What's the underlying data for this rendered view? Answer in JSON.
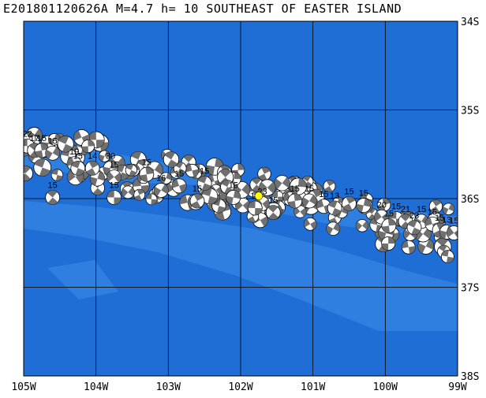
{
  "title": "E201801120626A M=4.7 h= 10 SOUTHEAST OF EASTER ISLAND",
  "colors": {
    "ocean": "#1f6ed6",
    "ridge": "#2e7fe0",
    "grid": "#000000",
    "epicenter": "#ffff00",
    "beachball_dark": "#707070"
  },
  "map": {
    "lon_range": [
      -105,
      -99
    ],
    "lat_range": [
      -38,
      -34
    ],
    "lon_labels": [
      "105W",
      "104W",
      "103W",
      "102W",
      "101W",
      "100W",
      "99W"
    ],
    "lat_labels": [
      "34S",
      "35S",
      "36S",
      "37S",
      "38S"
    ]
  },
  "epicenter": {
    "lon": -101.75,
    "lat": -35.97
  },
  "mechanism_labels": [
    "22",
    "17",
    "15",
    "15",
    "19",
    "15",
    "14",
    "15",
    "30",
    "15",
    "15",
    "15",
    "15",
    "16",
    "15",
    "15",
    "23",
    "17",
    "15",
    "15",
    "15",
    "15",
    "15",
    "13",
    "15",
    "15",
    "20",
    "15",
    "21",
    "15",
    "15",
    "15",
    "23",
    "15",
    "13",
    "15"
  ],
  "mechanisms": [
    {
      "lon": -104.95,
      "lat": -35.3,
      "label": "22"
    },
    {
      "lon": -104.85,
      "lat": -35.35,
      "label": "17"
    },
    {
      "lon": -104.75,
      "lat": -35.35,
      "label": "15"
    },
    {
      "lon": -104.6,
      "lat": -35.38,
      "label": "15"
    },
    {
      "lon": -104.3,
      "lat": -35.5,
      "label": "19"
    },
    {
      "lon": -104.25,
      "lat": -35.55,
      "label": "15"
    },
    {
      "lon": -104.05,
      "lat": -35.55,
      "label": "14"
    },
    {
      "lon": -103.8,
      "lat": -35.55,
      "label": "30"
    },
    {
      "lon": -103.75,
      "lat": -35.65,
      "label": "15"
    },
    {
      "lon": -103.75,
      "lat": -35.88,
      "label": "15"
    },
    {
      "lon": -104.6,
      "lat": -35.88,
      "label": "15"
    },
    {
      "lon": -103.3,
      "lat": -35.62,
      "label": "15"
    },
    {
      "lon": -103.1,
      "lat": -35.8,
      "label": "16"
    },
    {
      "lon": -102.85,
      "lat": -35.75,
      "label": "15"
    },
    {
      "lon": -102.5,
      "lat": -35.72,
      "label": "15"
    },
    {
      "lon": -102.6,
      "lat": -35.92,
      "label": "15"
    },
    {
      "lon": -102.1,
      "lat": -35.88,
      "label": "15"
    },
    {
      "lon": -101.7,
      "lat": -35.95,
      "label": "23"
    },
    {
      "lon": -101.8,
      "lat": -36.0,
      "label": "17"
    },
    {
      "lon": -101.55,
      "lat": -36.05,
      "label": "15"
    },
    {
      "lon": -101.25,
      "lat": -35.92,
      "label": "15"
    },
    {
      "lon": -101.05,
      "lat": -35.92,
      "label": "15"
    },
    {
      "lon": -100.85,
      "lat": -35.98,
      "label": "15"
    },
    {
      "lon": -100.7,
      "lat": -36.0,
      "label": "13"
    },
    {
      "lon": -100.5,
      "lat": -35.95,
      "label": "15"
    },
    {
      "lon": -100.3,
      "lat": -35.97,
      "label": "15"
    },
    {
      "lon": -100.05,
      "lat": -36.1,
      "label": "20"
    },
    {
      "lon": -99.85,
      "lat": -36.12,
      "label": "15"
    },
    {
      "lon": -99.72,
      "lat": -36.15,
      "label": "21"
    },
    {
      "lon": -99.95,
      "lat": -36.2,
      "label": "15"
    },
    {
      "lon": -99.5,
      "lat": -36.15,
      "label": "15"
    },
    {
      "lon": -99.35,
      "lat": -36.18,
      "label": "15"
    },
    {
      "lon": -99.6,
      "lat": -36.22,
      "label": "23"
    },
    {
      "lon": -99.25,
      "lat": -36.25,
      "label": "15"
    },
    {
      "lon": -99.15,
      "lat": -36.27,
      "label": "13"
    },
    {
      "lon": -99.05,
      "lat": -36.28,
      "label": "15"
    }
  ]
}
